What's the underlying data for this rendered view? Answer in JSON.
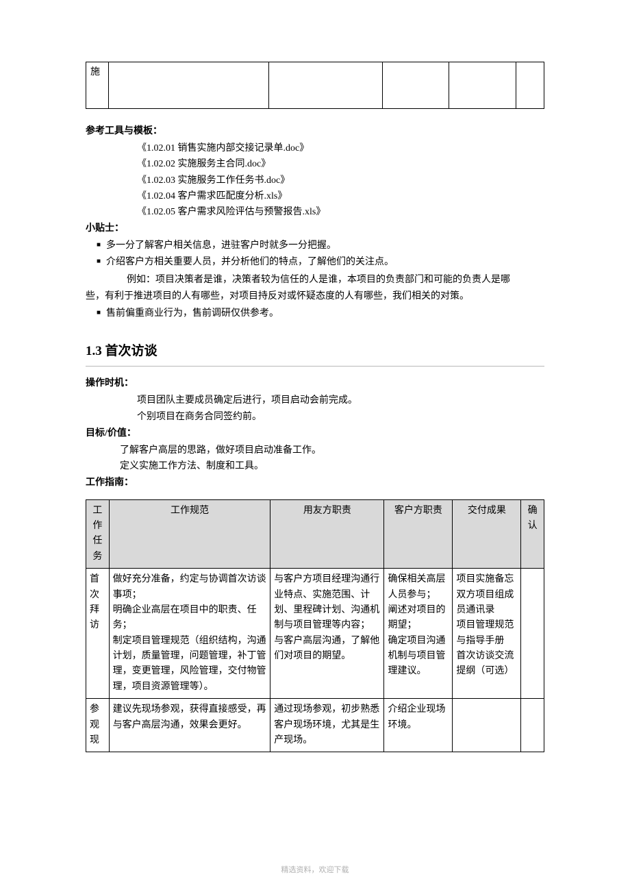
{
  "topTable": {
    "cell1": "施"
  },
  "sections": {
    "toolsLabel": "参考工具与模板：",
    "tools": [
      "《1.02.01 销售实施内部交接记录单.doc》",
      "《1.02.02 实施服务主合同.doc》",
      "《1.02.03 实施服务工作任务书.doc》",
      "《1.02.04 客户需求匹配度分析.xls》",
      "《1.02.05 客户需求风险评估与预警报告.xls》"
    ],
    "tipsLabel": "小贴士：",
    "tips": [
      "多一分了解客户相关信息，进驻客户时就多一分把握。",
      "介绍客户方相关重要人员，并分析他们的特点，了解他们的关注点。"
    ],
    "tipsExampleLead": "例如：项目决策者是谁，决策者较为信任的人是谁，本项目的负责部门和可能的负责人是哪",
    "tipsExampleCont": "些，有利于推进项目的人有哪些，对项目持反对或怀疑态度的人有哪些，我们相关的对策。",
    "tipsLast": "售前偏重商业行为，售前调研仅供参考。",
    "heading": "1.3 首次访谈",
    "timingLabel": "操作时机：",
    "timing": [
      "项目团队主要成员确定后进行，项目启动会前完成。",
      "个别项目在商务合同签约前。"
    ],
    "goalLabel": "目标/价值：",
    "goal": [
      "了解客户高层的思路，做好项目启动准备工作。",
      "定义实施工作方法、制度和工具。"
    ],
    "guideLabel": "工作指南："
  },
  "guideTable": {
    "headers": {
      "h1": "工作任务",
      "h2": "工作规范",
      "h3": "用友方职责",
      "h4": "客户方职责",
      "h5": "交付成果",
      "h6": "确认"
    },
    "rows": [
      {
        "task": "首次拜访",
        "spec": "做好充分准备，约定与协调首次访谈事项；\n明确企业高层在项目中的职责、任务；\n制定项目管理规范（组织结构，沟通计划，质量管理，问题管理，补丁管理，变更管理，风险管理，交付物管理，项目资源管理等）。",
        "yf": "与客户方项目经理沟通行业特点、实施范围、计划、里程碑计划、沟通机制与项目管理等内容；\n与客户高层沟通，了解他们对项目的期望。",
        "kh": "确保相关高层人员参与；\n阐述对项目的期望；\n确定项目沟通机制与项目管理建议。",
        "deliv": "项目实施备忘\n双方项目组成员通讯录\n项目管理规范与指导手册\n首次访谈交流提纲（可选）",
        "confirm": ""
      },
      {
        "task": "参观现",
        "spec": "建议先现场参观，获得直接感受，再与客户高层沟通，效果会更好。",
        "yf": "通过现场参观，初步熟悉客户现场环境，尤其是生产现场。",
        "kh": "介绍企业现场环境。",
        "deliv": "",
        "confirm": ""
      }
    ]
  },
  "footer": "精选资料，欢迎下载"
}
